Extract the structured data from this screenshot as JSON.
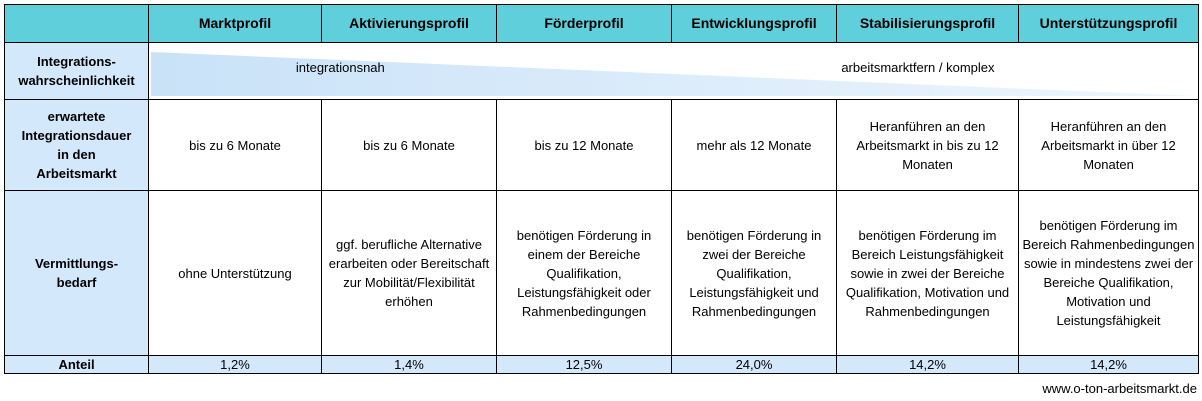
{
  "columns": [
    "Marktprofil",
    "Aktivierungsprofil",
    "Förderprofil",
    "Entwicklungsprofil",
    "Stabilisierungsprofil",
    "Unterstützungsprofil"
  ],
  "rows": {
    "probability": {
      "label": "Integrations-\nwahrscheinlichkeit",
      "near": "integrationsnah",
      "far": "arbeitsmarktfern / komplex"
    },
    "duration": {
      "label": "erwartete\nIntegrationsdauer\nin den\nArbeitsmarkt",
      "values": [
        "bis zu 6 Monate",
        "bis zu 6 Monate",
        "bis zu 12 Monate",
        "mehr als 12 Monate",
        "Heranführen an den Arbeitsmarkt in bis zu 12 Monaten",
        "Heranführen an den Arbeitsmarkt in über 12 Monaten"
      ]
    },
    "need": {
      "label": "Vermittlungs-\nbedarf",
      "values": [
        "ohne Unterstützung",
        "ggf. berufliche Alternative erarbeiten oder Bereitschaft zur Mobilität/Flexibilität erhöhen",
        "benötigen Förderung in einem der Bereiche Qualifikation, Leistungsfähigkeit oder Rahmenbedingungen",
        "benötigen Förderung in zwei der Bereiche Qualifikation, Leistungsfähigkeit und Rahmenbedingungen",
        "benötigen Förderung im Bereich Leistungsfähigkeit sowie in zwei der Bereiche Qualifikation, Motivation und Rahmenbedingungen",
        "benötigen Förderung im Bereich Rahmenbedingungen sowie in mindestens zwei der Bereiche Qualifikation, Motivation und Leistungsfähigkeit"
      ]
    },
    "share": {
      "label": "Anteil",
      "values": [
        "1,2%",
        "1,4%",
        "12,5%",
        "24,0%",
        "14,2%",
        "14,2%"
      ]
    }
  },
  "colors": {
    "header": "#5fcfdc",
    "rowhead": "#d4e8fb",
    "wedge": "#c9e2f8"
  },
  "source": "www.o-ton-arbeitsmarkt.de"
}
